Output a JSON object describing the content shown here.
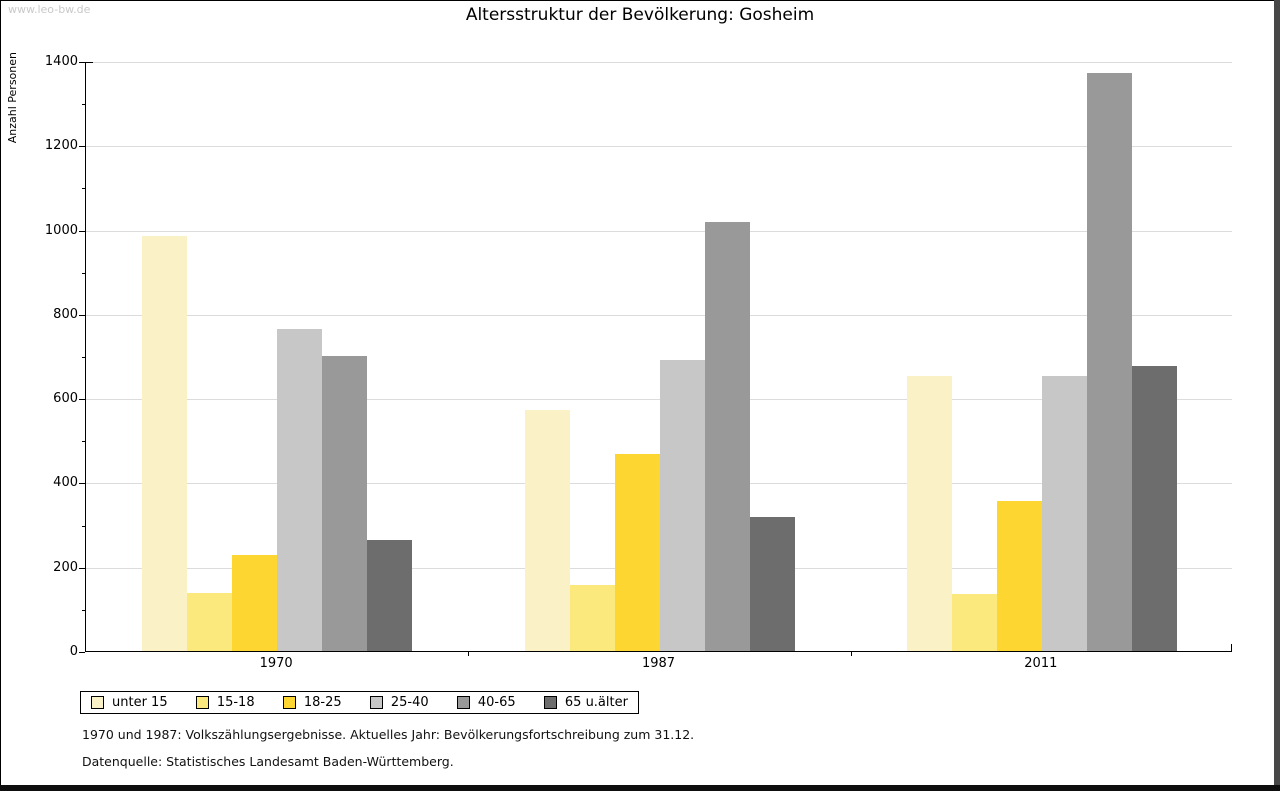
{
  "page": {
    "watermark": "www.leo-bw.de",
    "footnote1": "1970 und 1987: Volkszählungsergebnisse. Aktuelles Jahr: Bevölkerungsfortschreibung zum 31.12.",
    "footnote2": "Datenquelle: Statistisches Landesamt Baden-Württemberg."
  },
  "chart_data": {
    "type": "bar",
    "title": "Altersstruktur der Bevölkerung: Gosheim",
    "ylabel": "Anzahl Personen",
    "xlabel": "",
    "categories": [
      "1970",
      "1987",
      "2011"
    ],
    "series": [
      {
        "name": "unter 15",
        "color": "#FAF2C6",
        "values": [
          985,
          572,
          652
        ]
      },
      {
        "name": "15-18",
        "color": "#FCE97E",
        "values": [
          137,
          156,
          135
        ]
      },
      {
        "name": "18-25",
        "color": "#FDD632",
        "values": [
          229,
          467,
          356
        ]
      },
      {
        "name": "25-40",
        "color": "#C7C7C7",
        "values": [
          763,
          691,
          653
        ]
      },
      {
        "name": "40-65",
        "color": "#999999",
        "values": [
          700,
          1018,
          1371
        ]
      },
      {
        "name": "65 u.älter",
        "color": "#6D6D6D",
        "values": [
          264,
          317,
          677
        ]
      }
    ],
    "ylim": [
      0,
      1400
    ],
    "ytick_step": 200,
    "ytick_minor_step": 100,
    "grid": true,
    "gridline_color": "#dcdcdc",
    "legend_position": "bottom"
  }
}
